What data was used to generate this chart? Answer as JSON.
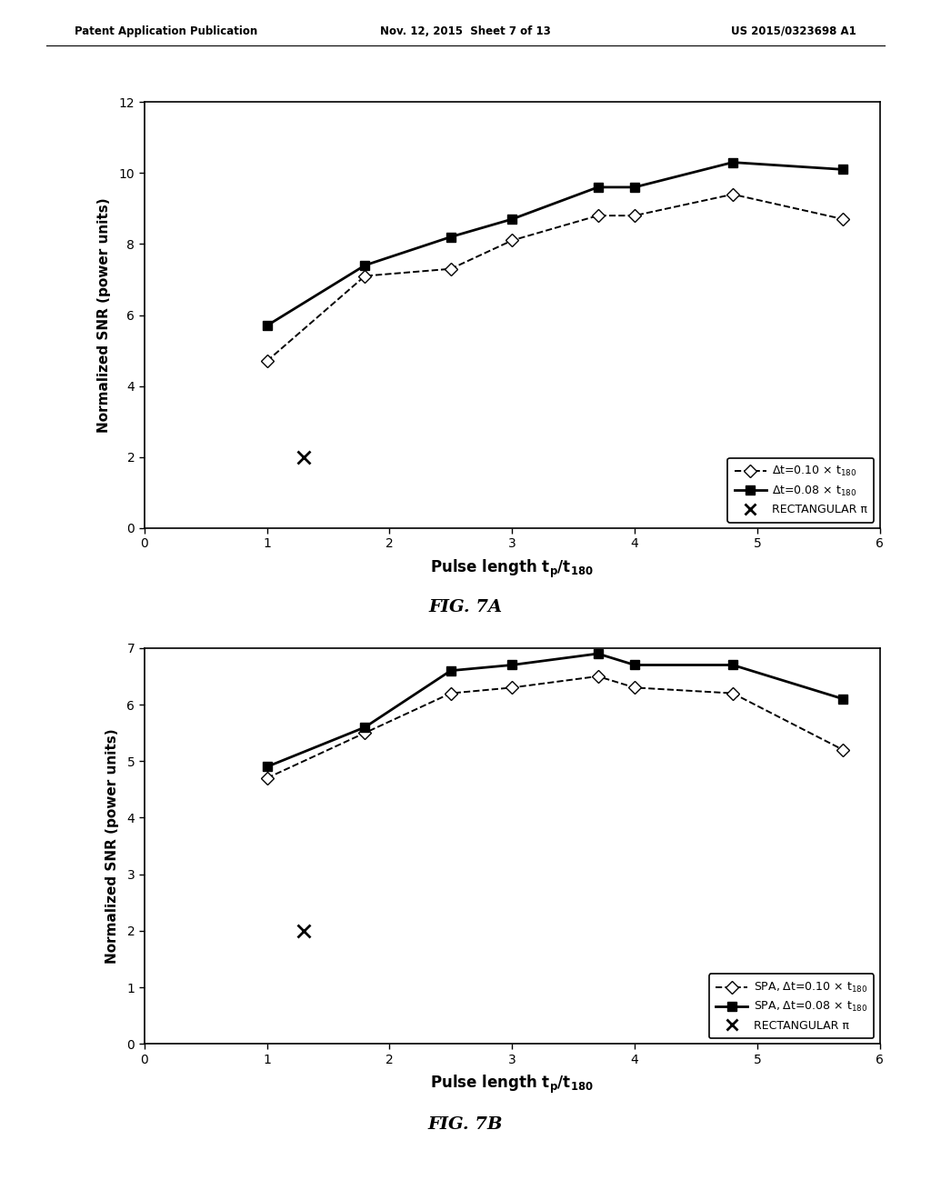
{
  "header_left": "Patent Application Publication",
  "header_center": "Nov. 12, 2015  Sheet 7 of 13",
  "header_right": "US 2015/0323698 A1",
  "fig7a": {
    "title": "FIG. 7A",
    "xlim": [
      0,
      6
    ],
    "ylim": [
      0,
      12
    ],
    "xticks": [
      0,
      1,
      2,
      3,
      4,
      5,
      6
    ],
    "yticks": [
      0,
      2,
      4,
      6,
      8,
      10,
      12
    ],
    "series1_x": [
      1.0,
      1.8,
      2.5,
      3.0,
      3.7,
      4.0,
      4.8,
      5.7
    ],
    "series1_y": [
      4.7,
      7.1,
      7.3,
      8.1,
      8.8,
      8.8,
      9.4,
      8.7
    ],
    "series2_x": [
      1.0,
      1.8,
      2.5,
      3.0,
      3.7,
      4.0,
      4.8,
      5.7
    ],
    "series2_y": [
      5.7,
      7.4,
      8.2,
      8.7,
      9.6,
      9.6,
      10.3,
      10.1
    ],
    "rect_x": 1.3,
    "rect_y": 2.0,
    "legend_label1": "Δt=0.10 x t",
    "legend_label1_sub": "180",
    "legend_label2": "Δt=0.08 x t",
    "legend_label2_sub": "180",
    "legend_label3": "RECTANGULAR π"
  },
  "fig7b": {
    "title": "FIG. 7B",
    "xlim": [
      0,
      6
    ],
    "ylim": [
      0,
      7
    ],
    "xticks": [
      0,
      1,
      2,
      3,
      4,
      5,
      6
    ],
    "yticks": [
      0,
      1,
      2,
      3,
      4,
      5,
      6,
      7
    ],
    "series1_x": [
      1.0,
      1.8,
      2.5,
      3.0,
      3.7,
      4.0,
      4.8,
      5.7
    ],
    "series1_y": [
      4.7,
      5.5,
      6.2,
      6.3,
      6.5,
      6.3,
      6.2,
      5.2
    ],
    "series2_x": [
      1.0,
      1.8,
      2.5,
      3.0,
      3.7,
      4.0,
      4.8,
      5.7
    ],
    "series2_y": [
      4.9,
      5.6,
      6.6,
      6.7,
      6.9,
      6.7,
      6.7,
      6.1
    ],
    "rect_x": 1.3,
    "rect_y": 2.0,
    "legend_label1": "SPA, Δt=0.10 x t",
    "legend_label1_sub": "180",
    "legend_label2": "SPA, Δt=0.08 x t",
    "legend_label2_sub": "180",
    "legend_label3": "RECTANGULAR π"
  },
  "background_color": "#ffffff",
  "header_fontsize": 8.5,
  "axis_label_fontsize": 11,
  "tick_fontsize": 10,
  "caption_fontsize": 14,
  "legend_fontsize": 9
}
